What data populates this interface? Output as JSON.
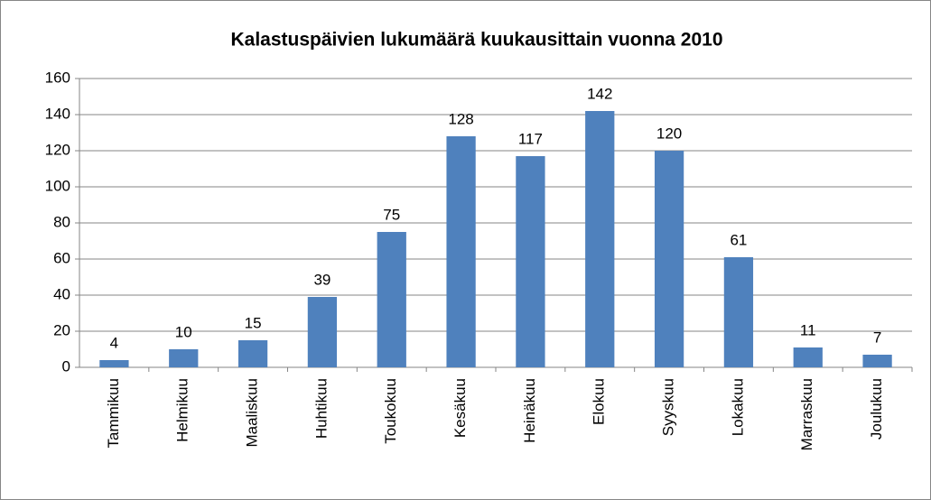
{
  "chart_data": {
    "type": "bar",
    "title": "Kalastuspäivien lukumäärä kuukausittain vuonna 2010",
    "categories": [
      "Tammikuu",
      "Helmikuu",
      "Maaliskuu",
      "Huhtikuu",
      "Toukokuu",
      "Kesäkuu",
      "Heinäkuu",
      "Elokuu",
      "Syyskuu",
      "Lokakuu",
      "Marraskuu",
      "Joulukuu"
    ],
    "values": [
      4,
      10,
      15,
      39,
      75,
      128,
      117,
      142,
      120,
      61,
      11,
      7
    ],
    "color": "#4f81bd",
    "ylim": [
      0,
      160
    ],
    "yticks": [
      0,
      20,
      40,
      60,
      80,
      100,
      120,
      140,
      160
    ],
    "grid": true
  }
}
